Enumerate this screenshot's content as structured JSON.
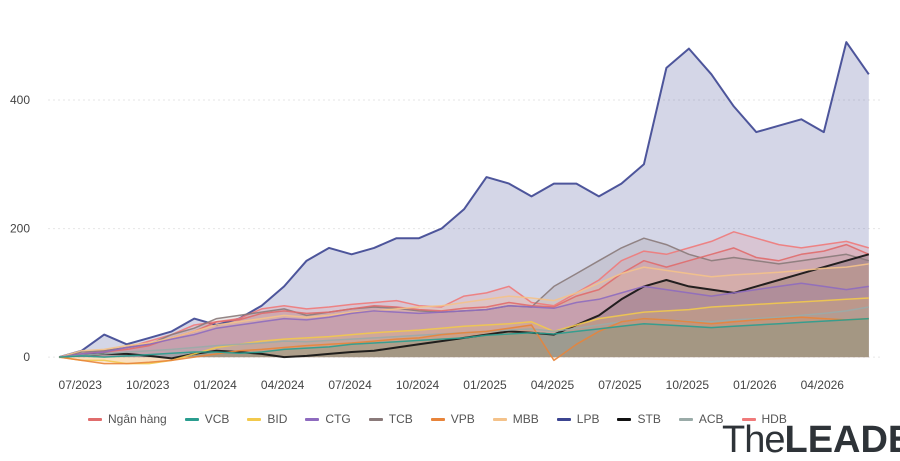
{
  "chart_data": {
    "type": "area",
    "y_ticks": [
      0,
      200,
      400
    ],
    "ylim": [
      -20,
      540
    ],
    "x_ticks": [
      "07/2023",
      "10/2023",
      "01/2024",
      "04/2024",
      "07/2024",
      "10/2024",
      "01/2025",
      "04/2025",
      "07/2025",
      "10/2025",
      "01/2026",
      "04/2026"
    ],
    "x_tick_positions": [
      0,
      3,
      6,
      9,
      12,
      15,
      18,
      21,
      24,
      27,
      30,
      33
    ],
    "x_range": [
      -0.5,
      36.5
    ],
    "legend_position": "bottom",
    "series": [
      {
        "name": "Ngân hàng",
        "color": "#e06c6c",
        "values": [
          0,
          5,
          8,
          12,
          18,
          30,
          40,
          55,
          58,
          68,
          72,
          68,
          70,
          75,
          80,
          78,
          74,
          72,
          76,
          78,
          85,
          80,
          78,
          95,
          105,
          130,
          150,
          140,
          150,
          160,
          170,
          155,
          150,
          160,
          165,
          175,
          160
        ]
      },
      {
        "name": "VCB",
        "color": "#2a9d8f",
        "values": [
          0,
          2,
          0,
          2,
          4,
          6,
          8,
          8,
          6,
          8,
          12,
          14,
          16,
          20,
          22,
          24,
          26,
          28,
          30,
          34,
          36,
          38,
          36,
          40,
          44,
          48,
          52,
          50,
          48,
          46,
          48,
          50,
          52,
          54,
          56,
          58,
          60
        ]
      },
      {
        "name": "BID",
        "color": "#f2c94c",
        "values": [
          0,
          -5,
          -5,
          -10,
          -10,
          -5,
          5,
          15,
          20,
          25,
          28,
          30,
          32,
          35,
          38,
          40,
          42,
          45,
          48,
          50,
          52,
          55,
          40,
          50,
          60,
          65,
          70,
          72,
          74,
          78,
          80,
          82,
          84,
          86,
          88,
          90,
          92
        ]
      },
      {
        "name": "CTG",
        "color": "#8e6bbf",
        "values": [
          0,
          5,
          8,
          15,
          20,
          28,
          35,
          45,
          50,
          55,
          60,
          58,
          62,
          68,
          72,
          70,
          68,
          70,
          72,
          74,
          80,
          78,
          76,
          85,
          90,
          100,
          110,
          105,
          100,
          95,
          100,
          105,
          110,
          115,
          110,
          105,
          110
        ]
      },
      {
        "name": "TCB",
        "color": "#8a7a7a",
        "values": [
          0,
          8,
          10,
          15,
          20,
          35,
          45,
          60,
          65,
          70,
          75,
          65,
          70,
          75,
          78,
          76,
          72,
          70,
          72,
          74,
          80,
          78,
          110,
          130,
          150,
          170,
          185,
          175,
          160,
          150,
          155,
          150,
          145,
          150,
          155,
          160,
          150
        ]
      },
      {
        "name": "VPB",
        "color": "#e8843a",
        "values": [
          0,
          -5,
          -10,
          -10,
          -8,
          -5,
          0,
          5,
          10,
          12,
          15,
          18,
          20,
          22,
          25,
          28,
          30,
          35,
          38,
          40,
          45,
          50,
          -5,
          20,
          40,
          55,
          60,
          58,
          55,
          52,
          55,
          58,
          60,
          62,
          60,
          58,
          60
        ]
      },
      {
        "name": "MBB",
        "color": "#f4c28a",
        "values": [
          0,
          10,
          12,
          18,
          22,
          30,
          40,
          50,
          55,
          60,
          65,
          62,
          65,
          70,
          72,
          75,
          78,
          80,
          85,
          90,
          95,
          92,
          88,
          100,
          115,
          130,
          140,
          135,
          130,
          125,
          128,
          130,
          132,
          135,
          138,
          140,
          145
        ]
      },
      {
        "name": "LPB",
        "color": "#3c4591",
        "values": [
          0,
          10,
          35,
          20,
          30,
          40,
          60,
          50,
          60,
          80,
          110,
          150,
          170,
          160,
          170,
          185,
          185,
          200,
          230,
          280,
          270,
          250,
          270,
          270,
          250,
          270,
          300,
          450,
          480,
          440,
          390,
          350,
          360,
          370,
          350,
          490,
          440
        ]
      },
      {
        "name": "STB",
        "color": "#111111",
        "values": [
          0,
          3,
          5,
          5,
          2,
          -2,
          5,
          10,
          8,
          5,
          0,
          2,
          5,
          8,
          10,
          15,
          20,
          25,
          30,
          35,
          40,
          38,
          35,
          50,
          65,
          90,
          110,
          120,
          110,
          105,
          100,
          110,
          120,
          130,
          140,
          150,
          160
        ]
      },
      {
        "name": "ACB",
        "color": "#9aaba8",
        "values": [
          0,
          3,
          5,
          8,
          10,
          12,
          15,
          18,
          20,
          22,
          25,
          24,
          26,
          28,
          30,
          32,
          34,
          36,
          38,
          40,
          42,
          44,
          40,
          45,
          50,
          55,
          60,
          58,
          56,
          55,
          58,
          60,
          62,
          65,
          68,
          72,
          78
        ]
      },
      {
        "name": "HDB",
        "color": "#f07a7a",
        "values": [
          0,
          5,
          10,
          15,
          25,
          35,
          50,
          55,
          60,
          75,
          80,
          75,
          78,
          82,
          85,
          88,
          80,
          78,
          95,
          100,
          110,
          85,
          80,
          100,
          120,
          150,
          165,
          160,
          170,
          180,
          195,
          185,
          175,
          170,
          175,
          180,
          170
        ]
      }
    ]
  },
  "brand": {
    "part1": "The",
    "part2": "LEADER"
  }
}
